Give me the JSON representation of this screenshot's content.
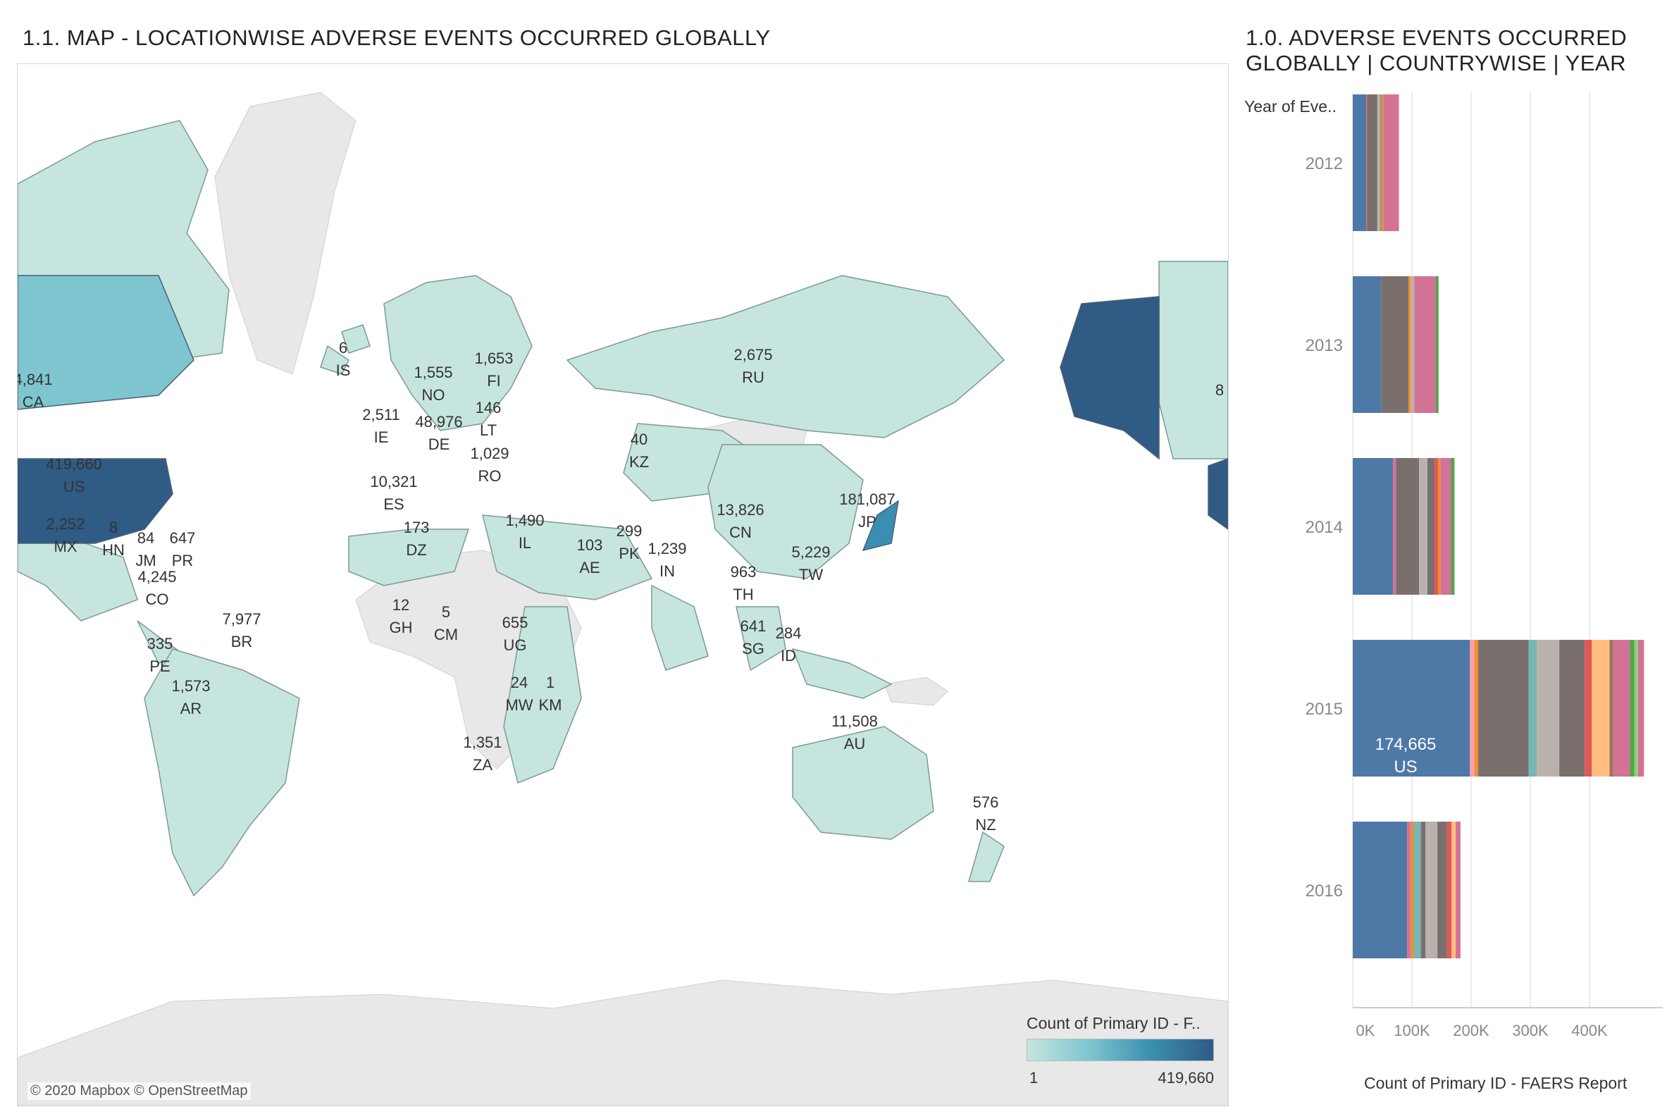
{
  "map": {
    "title": "1.1.  MAP - LOCATIONWISE ADVERSE EVENTS OCCURRED GLOBALLY",
    "attribution": "© 2020 Mapbox © OpenStreetMap",
    "legend": {
      "title": "Count of Primary ID - F..",
      "min": "1",
      "max": "419,660",
      "colors": [
        "#c6e5df",
        "#7ec5cf",
        "#3a8fb0",
        "#2f5b84"
      ]
    },
    "labels": [
      {
        "code": "CA",
        "value": "4,841"
      },
      {
        "code": "US",
        "value": "419,660"
      },
      {
        "code": "MX",
        "value": "2,252"
      },
      {
        "code": "HN",
        "value": "8"
      },
      {
        "code": "JM",
        "value": "84"
      },
      {
        "code": "PR",
        "value": "647"
      },
      {
        "code": "CO",
        "value": "4,245"
      },
      {
        "code": "PE",
        "value": "335"
      },
      {
        "code": "BR",
        "value": "7,977"
      },
      {
        "code": "AR",
        "value": "1,573"
      },
      {
        "code": "IS",
        "value": "6"
      },
      {
        "code": "NO",
        "value": "1,555"
      },
      {
        "code": "FI",
        "value": "1,653"
      },
      {
        "code": "IE",
        "value": "2,511"
      },
      {
        "code": "DE",
        "value": "48,976"
      },
      {
        "code": "LT",
        "value": "146"
      },
      {
        "code": "RO",
        "value": "1,029"
      },
      {
        "code": "ES",
        "value": "10,321"
      },
      {
        "code": "DZ",
        "value": "173"
      },
      {
        "code": "IL",
        "value": "1,490"
      },
      {
        "code": "AE",
        "value": "103"
      },
      {
        "code": "PK",
        "value": "299"
      },
      {
        "code": "IN",
        "value": "1,239"
      },
      {
        "code": "KZ",
        "value": "40"
      },
      {
        "code": "RU",
        "value": "2,675"
      },
      {
        "code": "CN",
        "value": "13,826"
      },
      {
        "code": "JP",
        "value": "181,087"
      },
      {
        "code": "TW",
        "value": "5,229"
      },
      {
        "code": "TH",
        "value": "963"
      },
      {
        "code": "SG",
        "value": "641"
      },
      {
        "code": "ID",
        "value": "284"
      },
      {
        "code": "GH",
        "value": "12"
      },
      {
        "code": "CM",
        "value": "5"
      },
      {
        "code": "UG",
        "value": "655"
      },
      {
        "code": "MW",
        "value": "24"
      },
      {
        "code": "KM",
        "value": "1"
      },
      {
        "code": "ZA",
        "value": "1,351"
      },
      {
        "code": "AU",
        "value": "11,508"
      },
      {
        "code": "NZ",
        "value": "576"
      },
      {
        "code": "",
        "value": "8"
      }
    ]
  },
  "chart": {
    "title_line1": "1.0.  ADVERSE EVENTS OCCURRED",
    "title_line2": "GLOBALLY   |   COUNTRYWISE   |   YEAR",
    "y_header": "Year of Eve..",
    "x_axis_label": "Count of Primary ID - FAERS Report",
    "bar_label_value": "174,665",
    "bar_label_country": "US"
  },
  "chart_data": {
    "type": "bar",
    "orientation": "horizontal",
    "stacked": true,
    "categories": [
      "2012",
      "2013",
      "2014",
      "2015",
      "2016"
    ],
    "totals": [
      78000,
      145000,
      172000,
      492000,
      182000
    ],
    "xlim": [
      0,
      500000
    ],
    "x_ticks": [
      "0K",
      "100K",
      "200K",
      "300K",
      "400K"
    ],
    "xlabel": "Count of Primary ID - FAERS Report",
    "ylabel": "Year of Eve..",
    "segments": [
      [
        {
          "c": "#4e79a7",
          "v": 23000
        },
        {
          "c": "#e15759",
          "v": 1500
        },
        {
          "c": "#79706e",
          "v": 17000
        },
        {
          "c": "#bab0ac",
          "v": 5000
        },
        {
          "c": "#59a14f",
          "v": 2000
        },
        {
          "c": "#f28e2b",
          "v": 3000
        },
        {
          "c": "#d37295",
          "v": 26500
        }
      ],
      [
        {
          "c": "#4e79a7",
          "v": 48000
        },
        {
          "c": "#79706e",
          "v": 46000
        },
        {
          "c": "#f28e2b",
          "v": 4000
        },
        {
          "c": "#bab0ac",
          "v": 6000
        },
        {
          "c": "#d37295",
          "v": 36000
        },
        {
          "c": "#59a14f",
          "v": 5000
        }
      ],
      [
        {
          "c": "#4e79a7",
          "v": 68000
        },
        {
          "c": "#d37295",
          "v": 5000
        },
        {
          "c": "#79706e",
          "v": 39000
        },
        {
          "c": "#bab0ac",
          "v": 14000
        },
        {
          "c": "#79706e",
          "v": 12000
        },
        {
          "c": "#e15759",
          "v": 6000
        },
        {
          "c": "#f28e2b",
          "v": 4000
        },
        {
          "c": "#d37295",
          "v": 18000
        },
        {
          "c": "#59a14f",
          "v": 6000
        }
      ],
      [
        {
          "c": "#4e79a7",
          "v": 198000
        },
        {
          "c": "#ff9da7",
          "v": 8000
        },
        {
          "c": "#f28e2b",
          "v": 6000
        },
        {
          "c": "#79706e",
          "v": 85000
        },
        {
          "c": "#76b7b2",
          "v": 14000
        },
        {
          "c": "#bab0ac",
          "v": 38000
        },
        {
          "c": "#79706e",
          "v": 43000
        },
        {
          "c": "#e15759",
          "v": 12000
        },
        {
          "c": "#ffbe7d",
          "v": 30000
        },
        {
          "c": "#9c755f",
          "v": 6000
        },
        {
          "c": "#d37295",
          "v": 28000
        },
        {
          "c": "#59a14f",
          "v": 8000
        },
        {
          "c": "#8cd17d",
          "v": 6000
        },
        {
          "c": "#d37295",
          "v": 10000
        }
      ],
      [
        {
          "c": "#4e79a7",
          "v": 92000
        },
        {
          "c": "#d37295",
          "v": 6000
        },
        {
          "c": "#f28e2b",
          "v": 5000
        },
        {
          "c": "#76b7b2",
          "v": 12000
        },
        {
          "c": "#79706e",
          "v": 8000
        },
        {
          "c": "#bab0ac",
          "v": 20000
        },
        {
          "c": "#79706e",
          "v": 16000
        },
        {
          "c": "#e15759",
          "v": 8000
        },
        {
          "c": "#ffbe7d",
          "v": 7000
        },
        {
          "c": "#d37295",
          "v": 8000
        }
      ]
    ]
  }
}
